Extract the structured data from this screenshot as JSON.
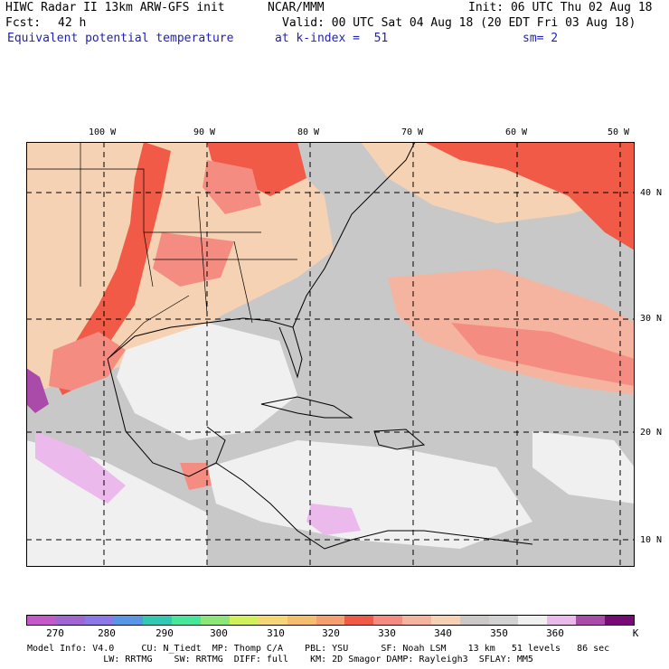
{
  "header": {
    "title": "HIWC Radar II 13km ARW-GFS init",
    "source": "NCAR/MMM",
    "init": "Init: 06 UTC Thu 02 Aug 18",
    "fcst_label": "Fcst:",
    "fcst_value": "42 h",
    "valid": "Valid: 00 UTC Sat 04 Aug 18 (20 EDT Fri 03 Aug 18)",
    "field": "Equivalent potential temperature",
    "level": "at k-index =  51",
    "smooth": "sm= 2"
  },
  "axes": {
    "lon_labels": [
      "100 W",
      "90 W",
      "80 W",
      "70 W",
      "60 W",
      "50 W"
    ],
    "lat_labels": [
      "40 N",
      "30 N",
      "20 N",
      "10 N"
    ]
  },
  "colorbar": {
    "unit": "K",
    "ticks": [
      "270",
      "280",
      "290",
      "300",
      "310",
      "320",
      "330",
      "340",
      "350",
      "360"
    ],
    "colors": [
      "#c45ac8",
      "#a066d2",
      "#8c78e6",
      "#5a96e6",
      "#32c8b4",
      "#46e69b",
      "#8ce678",
      "#d2f05a",
      "#f5d778",
      "#f5be6e",
      "#f5a06e",
      "#f05a46",
      "#f58c82",
      "#f5b4a0",
      "#f5d2b4",
      "#cdc8c8",
      "#d2d2d2",
      "#f0f0f0",
      "#ebb9eb",
      "#aa4baa",
      "#780a78"
    ]
  },
  "footer": {
    "line1": "Model Info: V4.0     CU: N_Tiedt  MP: Thomp C/A    PBL: YSU      SF: Noah LSM    13 km   51 levels   86 sec",
    "line2": "              LW: RRTMG    SW: RRTMG  DIFF: full    KM: 2D Smagor DAMP: Rayleigh3  SFLAY: MM5"
  },
  "map": {
    "background": "#c8c8c8",
    "high_color": "#f05a46",
    "warm_color": "#f5d2b4",
    "salmon_color": "#f58c82",
    "cool_color": "#f0f0f0",
    "violet_color": "#ebb9eb",
    "purple_color": "#aa4baa"
  }
}
